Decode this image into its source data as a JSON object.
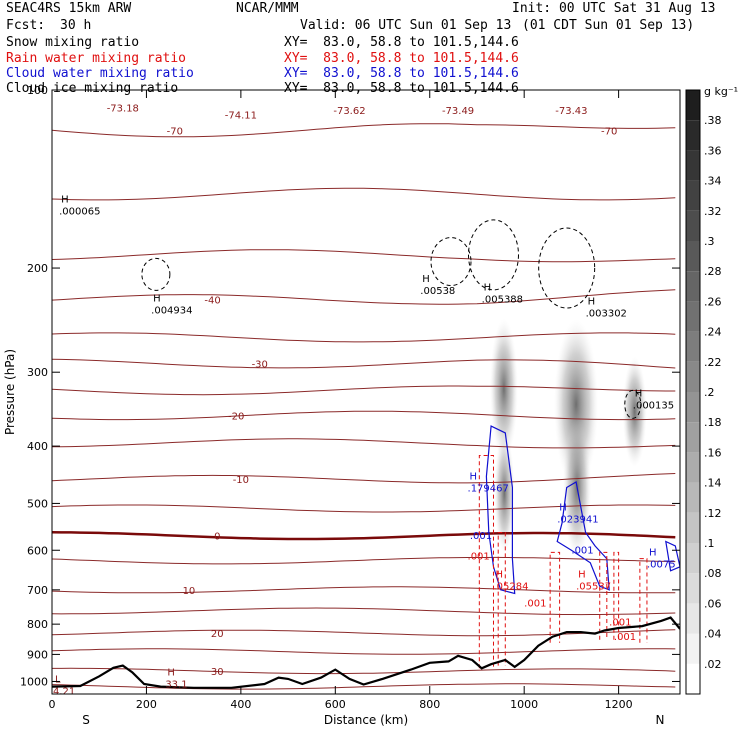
{
  "header": {
    "model": "SEAC4RS 15km ARW",
    "org": "NCAR/MMM",
    "init": "Init: 00 UTC Sat 31 Aug 13",
    "fcst_label": "Fcst:",
    "fcst_value": "30 h",
    "valid": "Valid: 06 UTC Sun 01 Sep 13",
    "valid_local": "(01 CDT Sun 01 Sep 13)",
    "fields": [
      {
        "name": "Snow mixing ratio",
        "color": "#000000",
        "xy": "XY=  83.0, 58.8 to 101.5,144.6"
      },
      {
        "name": "Rain water mixing ratio",
        "color": "#e01010",
        "xy": "XY=  83.0, 58.8 to 101.5,144.6"
      },
      {
        "name": "Cloud water mixing ratio",
        "color": "#1010d0",
        "xy": "XY=  83.0, 58.8 to 101.5,144.6"
      },
      {
        "name": "Cloud ice mixing ratio",
        "color": "#000000",
        "xy": "XY=  83.0, 58.8 to 101.5,144.6"
      }
    ]
  },
  "chart_data": {
    "type": "cross-section",
    "xlabel": "Distance (km)",
    "ylabel": "Pressure (hPa)",
    "xlim": [
      0,
      1330
    ],
    "ylim": [
      1050,
      100
    ],
    "y_scale": "log",
    "xticks": [
      0,
      200,
      400,
      600,
      800,
      1000,
      1200
    ],
    "yticks": [
      100,
      200,
      300,
      400,
      500,
      600,
      700,
      800,
      900,
      1000
    ],
    "x_end_labels": {
      "left": "S",
      "right": "N"
    },
    "colorbar": {
      "unit": "g kg⁻¹",
      "ticks": [
        ".02",
        ".04",
        ".06",
        ".08",
        ".1",
        ".12",
        ".14",
        ".16",
        ".18",
        ".2",
        ".22",
        ".24",
        ".26",
        ".28",
        ".3",
        ".32",
        ".34",
        ".36",
        ".38"
      ]
    },
    "temperature_contours": [
      {
        "label": "-70",
        "label_x": 260,
        "label_p": 117
      },
      {
        "label": "-40",
        "label_x": 340,
        "label_p": 226
      },
      {
        "label": "-30",
        "label_x": 440,
        "label_p": 290
      },
      {
        "label": "-20",
        "label_x": 390,
        "label_p": 355
      },
      {
        "label": "-10",
        "label_x": 400,
        "label_p": 455
      },
      {
        "label": "0",
        "label_x": 350,
        "label_p": 567
      },
      {
        "label": "10",
        "label_x": 290,
        "label_p": 700
      },
      {
        "label": "20",
        "label_x": 350,
        "label_p": 828
      },
      {
        "label": "30",
        "label_x": 350,
        "label_p": 960
      }
    ],
    "temperature_numbers": [
      {
        "text": "-73.18",
        "x": 150,
        "p": 107
      },
      {
        "text": "-74.11",
        "x": 400,
        "p": 110
      },
      {
        "text": "-73.62",
        "x": 630,
        "p": 108
      },
      {
        "text": "-73.43",
        "x": 1100,
        "p": 108
      },
      {
        "text": "-73.49",
        "x": 860,
        "p": 108
      },
      {
        "text": "-70",
        "x": 1180,
        "p": 117
      }
    ],
    "highs_lows": [
      {
        "kind": "H",
        "value": ".000065",
        "x": 15,
        "p": 160,
        "color": "#000000"
      },
      {
        "kind": "H",
        "value": ".004934",
        "x": 210,
        "p": 235,
        "color": "#000000"
      },
      {
        "kind": "H",
        "value": ".00538",
        "x": 780,
        "p": 218,
        "color": "#000000"
      },
      {
        "kind": "H",
        "value": ".005388",
        "x": 910,
        "p": 225,
        "color": "#000000"
      },
      {
        "kind": "H",
        "value": ".003302",
        "x": 1130,
        "p": 238,
        "color": "#000000"
      },
      {
        "kind": "H",
        "value": ".000135",
        "x": 1230,
        "p": 340,
        "color": "#000000"
      },
      {
        "kind": "H",
        "value": ".179467",
        "x": 880,
        "p": 470,
        "color": "#1010d0"
      },
      {
        "kind": "H",
        "value": ".023941",
        "x": 1070,
        "p": 530,
        "color": "#1010d0"
      },
      {
        "kind": "",
        "value": ".001",
        "x": 885,
        "p": 565,
        "color": "#1010d0"
      },
      {
        "kind": "",
        "value": ".001",
        "x": 1100,
        "p": 598,
        "color": "#1010d0"
      },
      {
        "kind": "H",
        "value": ".0075",
        "x": 1260,
        "p": 632,
        "color": "#1010d0"
      },
      {
        "kind": "",
        "value": ".001",
        "x": 880,
        "p": 612,
        "color": "#e01010"
      },
      {
        "kind": "H",
        "value": ".05284",
        "x": 935,
        "p": 688,
        "color": "#e01010"
      },
      {
        "kind": "H",
        "value": ".05537",
        "x": 1110,
        "p": 688,
        "color": "#e01010"
      },
      {
        "kind": "",
        "value": ".001",
        "x": 1000,
        "p": 735,
        "color": "#e01010"
      },
      {
        "kind": "",
        "value": ".001",
        "x": 1180,
        "p": 792,
        "color": "#e01010"
      },
      {
        "kind": "",
        "value": ".001",
        "x": 1190,
        "p": 838,
        "color": "#e01010"
      },
      {
        "kind": "H",
        "value": "33.1",
        "x": 240,
        "p": 1008,
        "color": "#8b1a1a"
      },
      {
        "kind": "L",
        "value": "4.21",
        "x": 2,
        "p": 1035,
        "color": "#8b1a1a"
      }
    ],
    "terrain_p": [
      [
        0,
        1020
      ],
      [
        60,
        1018
      ],
      [
        100,
        980
      ],
      [
        130,
        948
      ],
      [
        150,
        940
      ],
      [
        170,
        965
      ],
      [
        195,
        1010
      ],
      [
        230,
        1020
      ],
      [
        300,
        1025
      ],
      [
        380,
        1025
      ],
      [
        450,
        1010
      ],
      [
        480,
        985
      ],
      [
        500,
        990
      ],
      [
        530,
        1010
      ],
      [
        570,
        985
      ],
      [
        600,
        955
      ],
      [
        630,
        990
      ],
      [
        660,
        1012
      ],
      [
        700,
        990
      ],
      [
        760,
        955
      ],
      [
        800,
        930
      ],
      [
        840,
        925
      ],
      [
        860,
        905
      ],
      [
        890,
        920
      ],
      [
        910,
        950
      ],
      [
        930,
        935
      ],
      [
        960,
        920
      ],
      [
        980,
        945
      ],
      [
        1000,
        920
      ],
      [
        1030,
        870
      ],
      [
        1060,
        840
      ],
      [
        1090,
        825
      ],
      [
        1120,
        825
      ],
      [
        1150,
        830
      ],
      [
        1170,
        820
      ],
      [
        1200,
        812
      ],
      [
        1250,
        806
      ],
      [
        1290,
        790
      ],
      [
        1310,
        780
      ],
      [
        1330,
        815
      ]
    ]
  }
}
